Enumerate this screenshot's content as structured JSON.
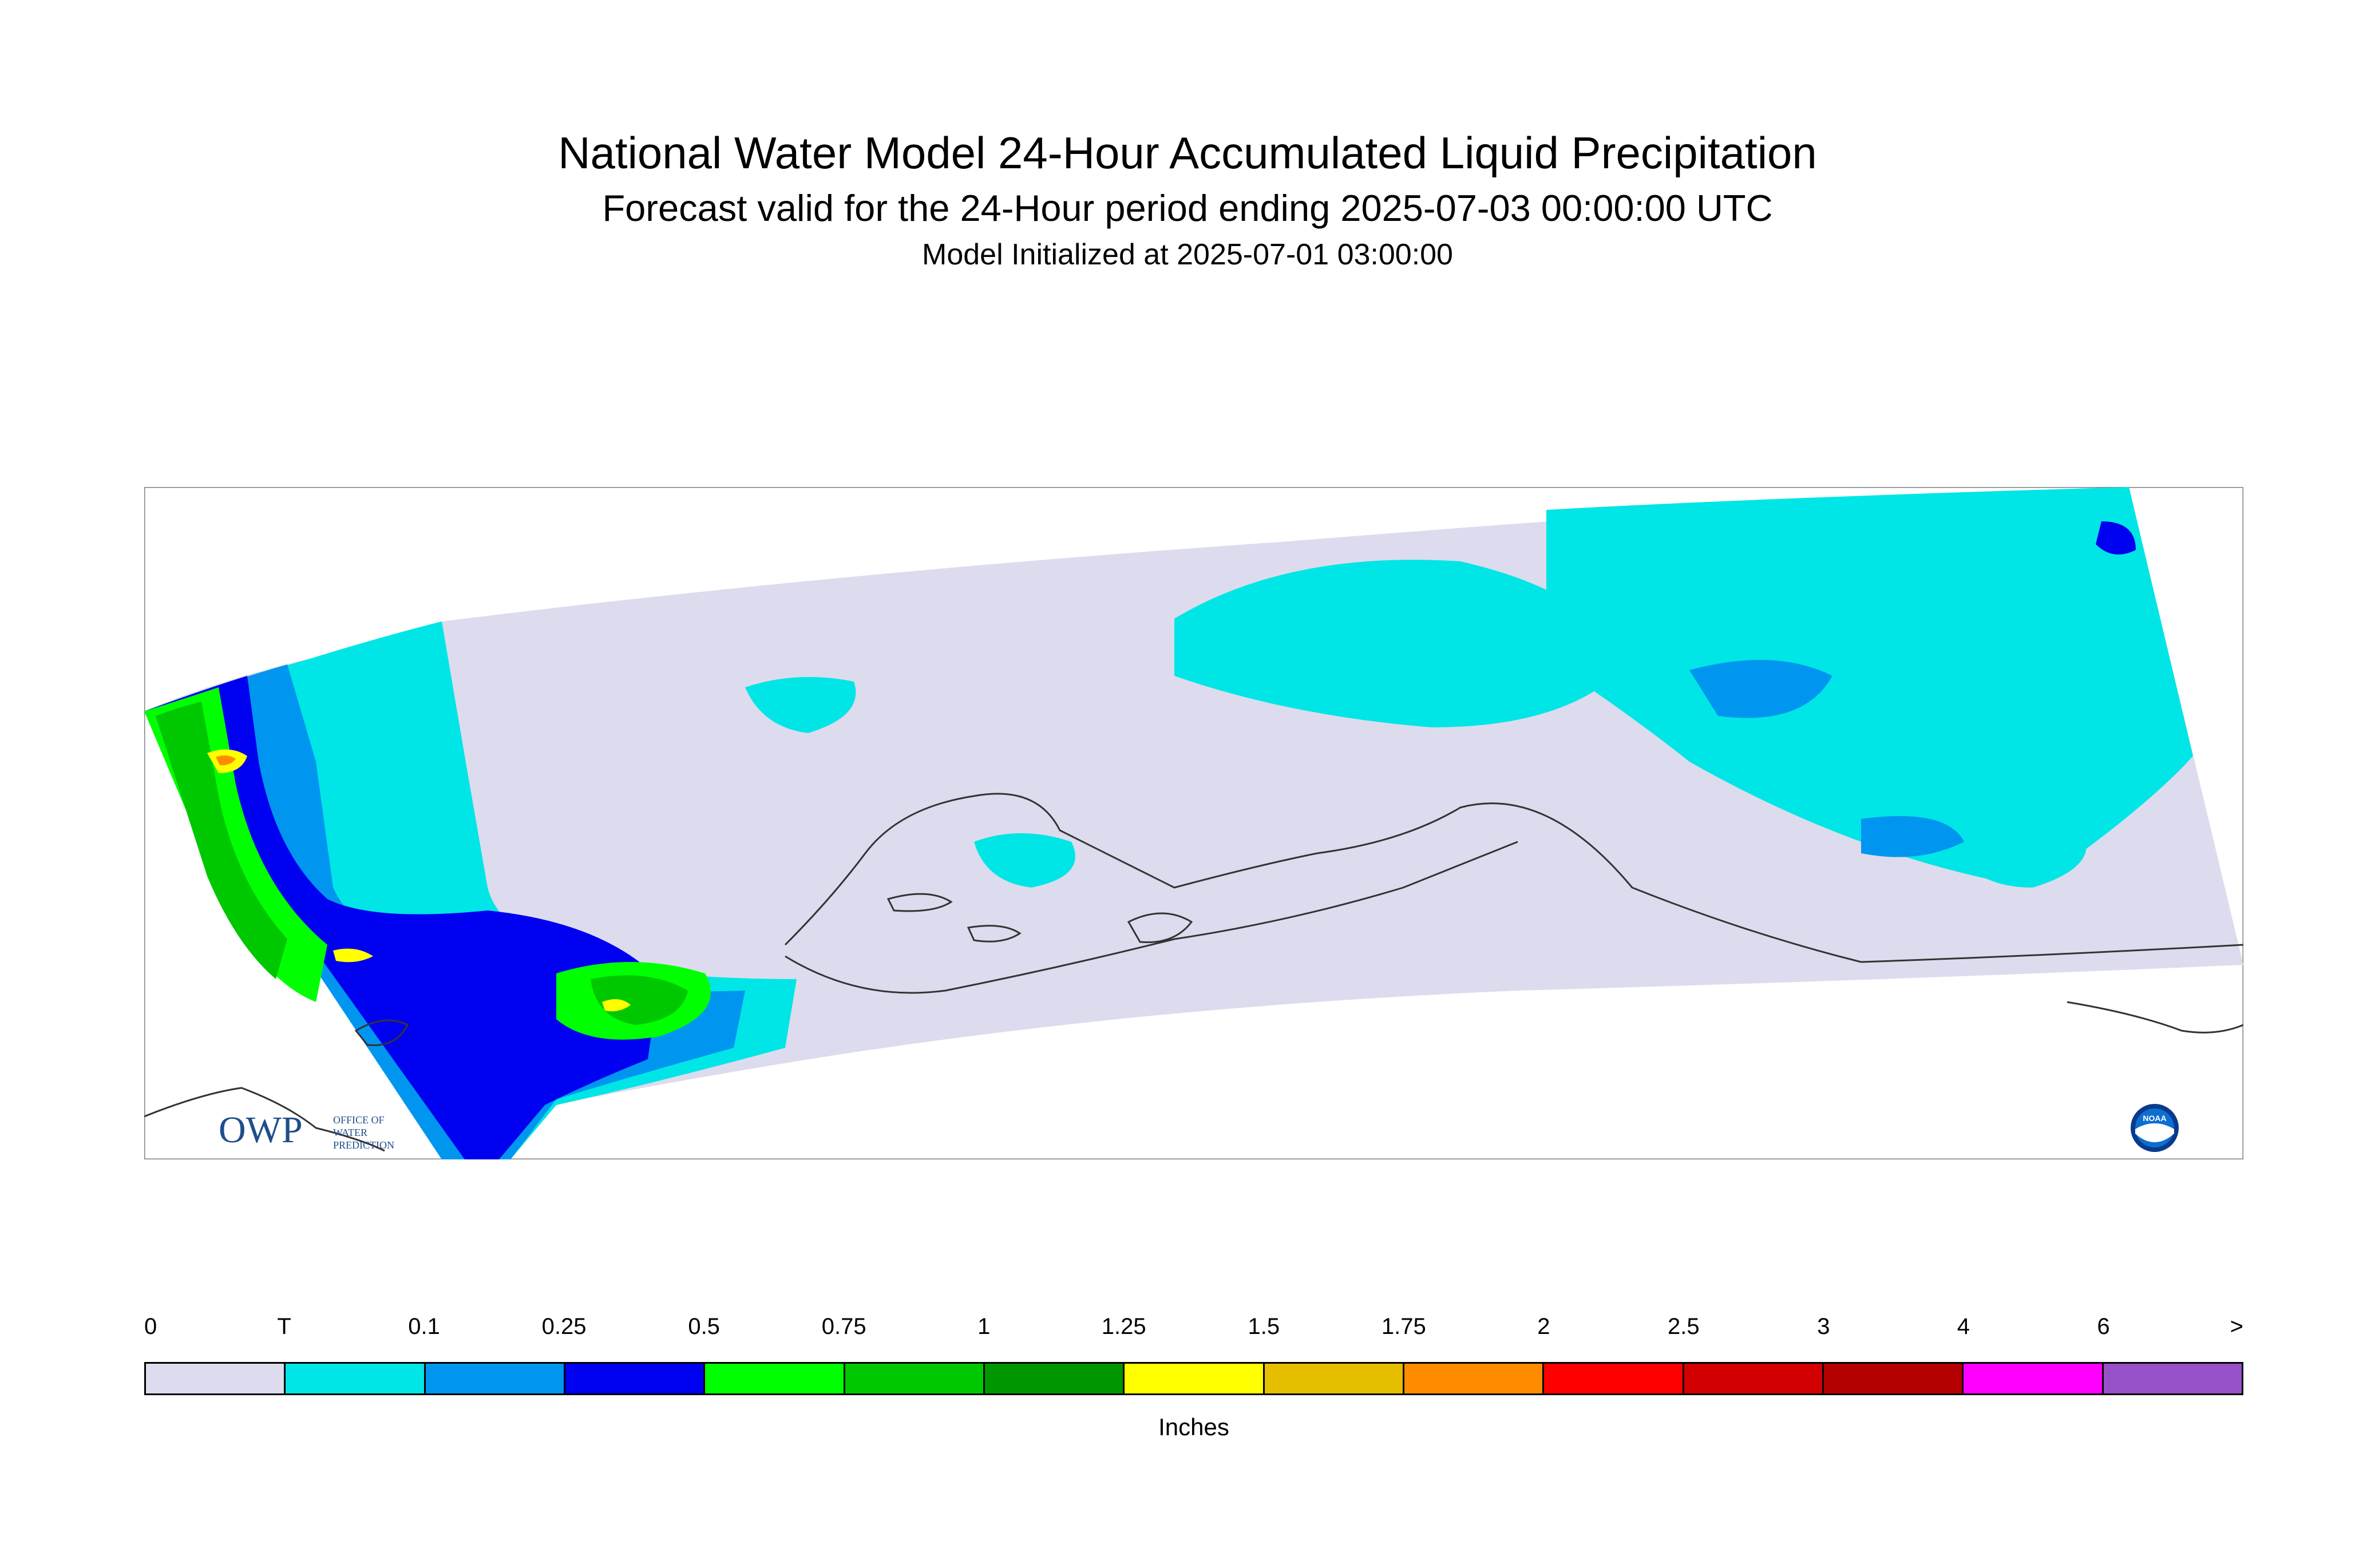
{
  "header": {
    "title": "National Water Model 24-Hour Accumulated Liquid Precipitation",
    "subtitle": "Forecast valid for the 24-Hour period ending 2025-07-03 00:00:00 UTC",
    "init": "Model Initialized at 2025-07-01 03:00:00"
  },
  "logos": {
    "owp_letters": "OWP",
    "owp_text": [
      "OFFICE OF",
      "WATER",
      "PREDICTION"
    ],
    "noaa_text": "NOAA"
  },
  "legend": {
    "labels": [
      "0",
      "T",
      "0.1",
      "0.25",
      "0.5",
      "0.75",
      "1",
      "1.25",
      "1.5",
      "1.75",
      "2",
      "2.5",
      "3",
      "4",
      "6",
      ">"
    ],
    "colors": [
      "#dcdcee",
      "#00e5e5",
      "#0096f0",
      "#0000f0",
      "#00ff00",
      "#00c800",
      "#009600",
      "#ffff00",
      "#e6be00",
      "#ff8c00",
      "#ff0000",
      "#d20000",
      "#b40000",
      "#ff00ff",
      "#9650c8"
    ],
    "units": "Inches"
  },
  "map_colors": {
    "domain": "#dcdcee",
    "trace": "#00e5e5",
    "c01": "#0096f0",
    "c025": "#0000f0",
    "c05": "#00ff00",
    "c075": "#00c800",
    "c1": "#009600",
    "c125": "#ffff00",
    "c15": "#e6be00",
    "c175": "#ff8c00",
    "coast": "#333333"
  }
}
